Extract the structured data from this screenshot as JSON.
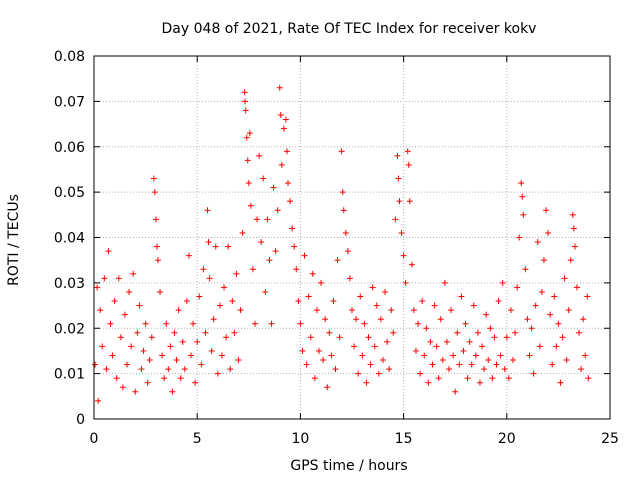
{
  "chart_data": {
    "type": "scatter",
    "title": "Day 048 of 2021, Rate Of TEC Index for receiver kokv",
    "xlabel": "GPS time / hours",
    "ylabel": "ROTI / TECUs",
    "xlim": [
      0,
      25
    ],
    "ylim": [
      0,
      0.08
    ],
    "x_ticks": [
      0,
      5,
      10,
      15,
      20,
      25
    ],
    "x_tick_labels": [
      "0",
      "5",
      "10",
      "15",
      "20",
      "25"
    ],
    "y_ticks": [
      0,
      0.01,
      0.02,
      0.03,
      0.04,
      0.05,
      0.06,
      0.07,
      0.08
    ],
    "y_tick_labels": [
      "0",
      "0.01",
      "0.02",
      "0.03",
      "0.04",
      "0.05",
      "0.06",
      "0.07",
      "0.08"
    ],
    "grid": true,
    "marker": "+",
    "marker_color": "#ff0000",
    "series": [
      {
        "name": "ROTI",
        "points": [
          [
            0.05,
            0.012
          ],
          [
            0.15,
            0.029
          ],
          [
            0.2,
            0.004
          ],
          [
            0.3,
            0.024
          ],
          [
            0.4,
            0.016
          ],
          [
            0.5,
            0.031
          ],
          [
            0.6,
            0.011
          ],
          [
            0.7,
            0.037
          ],
          [
            0.8,
            0.021
          ],
          [
            0.9,
            0.014
          ],
          [
            1.0,
            0.026
          ],
          [
            1.1,
            0.009
          ],
          [
            1.2,
            0.031
          ],
          [
            1.3,
            0.018
          ],
          [
            1.4,
            0.007
          ],
          [
            1.5,
            0.023
          ],
          [
            1.6,
            0.012
          ],
          [
            1.7,
            0.028
          ],
          [
            1.8,
            0.016
          ],
          [
            1.9,
            0.032
          ],
          [
            2.0,
            0.006
          ],
          [
            2.1,
            0.019
          ],
          [
            2.2,
            0.025
          ],
          [
            2.3,
            0.011
          ],
          [
            2.4,
            0.015
          ],
          [
            2.5,
            0.021
          ],
          [
            2.6,
            0.008
          ],
          [
            2.7,
            0.013
          ],
          [
            2.8,
            0.018
          ],
          [
            2.9,
            0.053
          ],
          [
            2.95,
            0.05
          ],
          [
            3.0,
            0.044
          ],
          [
            3.05,
            0.038
          ],
          [
            3.1,
            0.035
          ],
          [
            3.2,
            0.028
          ],
          [
            3.3,
            0.014
          ],
          [
            3.4,
            0.009
          ],
          [
            3.5,
            0.021
          ],
          [
            3.6,
            0.011
          ],
          [
            3.7,
            0.016
          ],
          [
            3.8,
            0.006
          ],
          [
            3.9,
            0.019
          ],
          [
            4.0,
            0.013
          ],
          [
            4.1,
            0.024
          ],
          [
            4.2,
            0.009
          ],
          [
            4.3,
            0.017
          ],
          [
            4.4,
            0.011
          ],
          [
            4.5,
            0.026
          ],
          [
            4.6,
            0.036
          ],
          [
            4.7,
            0.014
          ],
          [
            4.8,
            0.021
          ],
          [
            4.9,
            0.008
          ],
          [
            5.0,
            0.017
          ],
          [
            5.1,
            0.027
          ],
          [
            5.2,
            0.012
          ],
          [
            5.3,
            0.033
          ],
          [
            5.4,
            0.019
          ],
          [
            5.5,
            0.046
          ],
          [
            5.55,
            0.039
          ],
          [
            5.6,
            0.031
          ],
          [
            5.7,
            0.015
          ],
          [
            5.8,
            0.022
          ],
          [
            5.9,
            0.038
          ],
          [
            6.0,
            0.01
          ],
          [
            6.1,
            0.025
          ],
          [
            6.2,
            0.014
          ],
          [
            6.3,
            0.029
          ],
          [
            6.4,
            0.018
          ],
          [
            6.5,
            0.038
          ],
          [
            6.6,
            0.011
          ],
          [
            6.7,
            0.026
          ],
          [
            6.8,
            0.019
          ],
          [
            6.9,
            0.032
          ],
          [
            7.0,
            0.013
          ],
          [
            7.1,
            0.024
          ],
          [
            7.2,
            0.041
          ],
          [
            7.3,
            0.072
          ],
          [
            7.32,
            0.07
          ],
          [
            7.35,
            0.068
          ],
          [
            7.4,
            0.062
          ],
          [
            7.45,
            0.057
          ],
          [
            7.5,
            0.052
          ],
          [
            7.55,
            0.063
          ],
          [
            7.6,
            0.047
          ],
          [
            7.7,
            0.033
          ],
          [
            7.8,
            0.021
          ],
          [
            7.9,
            0.044
          ],
          [
            8.0,
            0.058
          ],
          [
            8.1,
            0.039
          ],
          [
            8.2,
            0.053
          ],
          [
            8.3,
            0.028
          ],
          [
            8.4,
            0.044
          ],
          [
            8.5,
            0.035
          ],
          [
            8.6,
            0.021
          ],
          [
            8.7,
            0.051
          ],
          [
            8.8,
            0.037
          ],
          [
            8.9,
            0.046
          ],
          [
            9.0,
            0.073
          ],
          [
            9.05,
            0.067
          ],
          [
            9.1,
            0.056
          ],
          [
            9.2,
            0.064
          ],
          [
            9.3,
            0.066
          ],
          [
            9.35,
            0.059
          ],
          [
            9.4,
            0.052
          ],
          [
            9.5,
            0.048
          ],
          [
            9.6,
            0.042
          ],
          [
            9.7,
            0.038
          ],
          [
            9.8,
            0.033
          ],
          [
            9.9,
            0.026
          ],
          [
            10.0,
            0.021
          ],
          [
            10.1,
            0.015
          ],
          [
            10.2,
            0.036
          ],
          [
            10.3,
            0.012
          ],
          [
            10.4,
            0.027
          ],
          [
            10.5,
            0.018
          ],
          [
            10.6,
            0.032
          ],
          [
            10.7,
            0.009
          ],
          [
            10.8,
            0.024
          ],
          [
            10.9,
            0.015
          ],
          [
            11.0,
            0.03
          ],
          [
            11.1,
            0.013
          ],
          [
            11.2,
            0.022
          ],
          [
            11.3,
            0.007
          ],
          [
            11.4,
            0.019
          ],
          [
            11.5,
            0.014
          ],
          [
            11.6,
            0.026
          ],
          [
            11.7,
            0.011
          ],
          [
            11.8,
            0.035
          ],
          [
            11.9,
            0.018
          ],
          [
            12.0,
            0.059
          ],
          [
            12.05,
            0.05
          ],
          [
            12.1,
            0.046
          ],
          [
            12.2,
            0.041
          ],
          [
            12.3,
            0.037
          ],
          [
            12.4,
            0.031
          ],
          [
            12.5,
            0.024
          ],
          [
            12.6,
            0.016
          ],
          [
            12.7,
            0.022
          ],
          [
            12.8,
            0.01
          ],
          [
            12.9,
            0.027
          ],
          [
            13.0,
            0.014
          ],
          [
            13.1,
            0.021
          ],
          [
            13.2,
            0.008
          ],
          [
            13.3,
            0.018
          ],
          [
            13.4,
            0.012
          ],
          [
            13.5,
            0.029
          ],
          [
            13.6,
            0.016
          ],
          [
            13.7,
            0.025
          ],
          [
            13.8,
            0.01
          ],
          [
            13.9,
            0.022
          ],
          [
            14.0,
            0.013
          ],
          [
            14.1,
            0.028
          ],
          [
            14.2,
            0.017
          ],
          [
            14.3,
            0.011
          ],
          [
            14.4,
            0.024
          ],
          [
            14.5,
            0.019
          ],
          [
            14.6,
            0.044
          ],
          [
            14.7,
            0.058
          ],
          [
            14.75,
            0.053
          ],
          [
            14.8,
            0.048
          ],
          [
            14.9,
            0.041
          ],
          [
            15.0,
            0.036
          ],
          [
            15.1,
            0.03
          ],
          [
            15.2,
            0.059
          ],
          [
            15.25,
            0.056
          ],
          [
            15.3,
            0.048
          ],
          [
            15.4,
            0.034
          ],
          [
            15.5,
            0.024
          ],
          [
            15.6,
            0.015
          ],
          [
            15.7,
            0.021
          ],
          [
            15.8,
            0.01
          ],
          [
            15.9,
            0.026
          ],
          [
            16.0,
            0.014
          ],
          [
            16.1,
            0.02
          ],
          [
            16.2,
            0.008
          ],
          [
            16.3,
            0.017
          ],
          [
            16.4,
            0.012
          ],
          [
            16.5,
            0.025
          ],
          [
            16.6,
            0.016
          ],
          [
            16.7,
            0.009
          ],
          [
            16.8,
            0.022
          ],
          [
            16.9,
            0.013
          ],
          [
            17.0,
            0.03
          ],
          [
            17.1,
            0.017
          ],
          [
            17.2,
            0.011
          ],
          [
            17.3,
            0.024
          ],
          [
            17.4,
            0.014
          ],
          [
            17.5,
            0.006
          ],
          [
            17.6,
            0.019
          ],
          [
            17.7,
            0.012
          ],
          [
            17.8,
            0.027
          ],
          [
            17.9,
            0.015
          ],
          [
            18.0,
            0.021
          ],
          [
            18.1,
            0.009
          ],
          [
            18.2,
            0.017
          ],
          [
            18.3,
            0.012
          ],
          [
            18.4,
            0.025
          ],
          [
            18.5,
            0.014
          ],
          [
            18.6,
            0.019
          ],
          [
            18.7,
            0.008
          ],
          [
            18.8,
            0.016
          ],
          [
            18.9,
            0.011
          ],
          [
            19.0,
            0.023
          ],
          [
            19.1,
            0.013
          ],
          [
            19.2,
            0.02
          ],
          [
            19.3,
            0.009
          ],
          [
            19.4,
            0.018
          ],
          [
            19.5,
            0.012
          ],
          [
            19.6,
            0.026
          ],
          [
            19.7,
            0.014
          ],
          [
            19.8,
            0.03
          ],
          [
            19.9,
            0.011
          ],
          [
            20.0,
            0.018
          ],
          [
            20.1,
            0.009
          ],
          [
            20.2,
            0.024
          ],
          [
            20.3,
            0.013
          ],
          [
            20.4,
            0.019
          ],
          [
            20.5,
            0.029
          ],
          [
            20.6,
            0.04
          ],
          [
            20.7,
            0.052
          ],
          [
            20.75,
            0.049
          ],
          [
            20.8,
            0.045
          ],
          [
            20.9,
            0.033
          ],
          [
            21.0,
            0.022
          ],
          [
            21.1,
            0.014
          ],
          [
            21.2,
            0.02
          ],
          [
            21.3,
            0.01
          ],
          [
            21.4,
            0.025
          ],
          [
            21.5,
            0.039
          ],
          [
            21.6,
            0.016
          ],
          [
            21.7,
            0.028
          ],
          [
            21.8,
            0.035
          ],
          [
            21.9,
            0.046
          ],
          [
            22.0,
            0.041
          ],
          [
            22.1,
            0.023
          ],
          [
            22.2,
            0.012
          ],
          [
            22.3,
            0.027
          ],
          [
            22.4,
            0.016
          ],
          [
            22.5,
            0.021
          ],
          [
            22.6,
            0.008
          ],
          [
            22.7,
            0.018
          ],
          [
            22.8,
            0.031
          ],
          [
            22.9,
            0.013
          ],
          [
            23.0,
            0.024
          ],
          [
            23.1,
            0.035
          ],
          [
            23.2,
            0.045
          ],
          [
            23.25,
            0.042
          ],
          [
            23.3,
            0.038
          ],
          [
            23.4,
            0.029
          ],
          [
            23.5,
            0.019
          ],
          [
            23.6,
            0.011
          ],
          [
            23.7,
            0.022
          ],
          [
            23.8,
            0.014
          ],
          [
            23.9,
            0.027
          ],
          [
            23.95,
            0.009
          ]
        ]
      }
    ]
  }
}
